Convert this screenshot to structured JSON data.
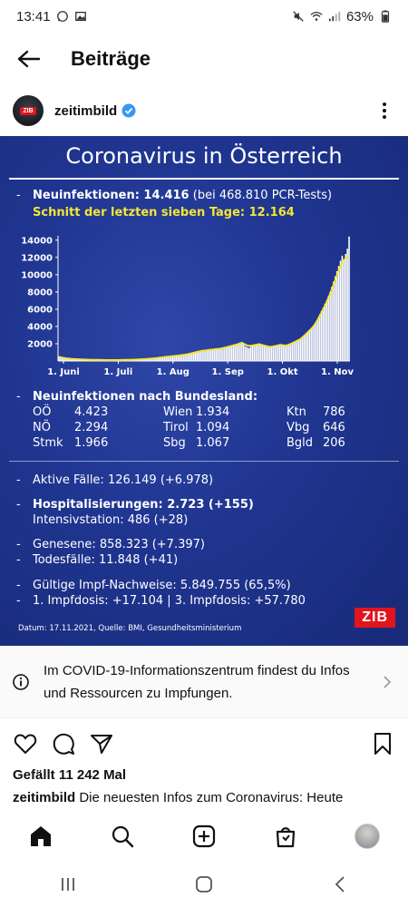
{
  "status_bar": {
    "time": "13:41",
    "battery": "63%"
  },
  "header": {
    "title": "Beiträge"
  },
  "profile": {
    "username": "zeitimbild",
    "avatar_badge": "ZIB"
  },
  "post_image": {
    "title": "Coronavirus in Österreich",
    "neuinfektionen_label": "Neuinfektionen: 14.416",
    "neuinfektionen_detail": "(bei 468.810 PCR-Tests)",
    "schnitt": "Schnitt der letzten sieben Tage: 12.164",
    "bundesland_title": "Neuinfektionen nach Bundesland:",
    "bundeslaender": [
      {
        "name": "OÖ",
        "value": "4.423"
      },
      {
        "name": "NÖ",
        "value": "2.294"
      },
      {
        "name": "Stmk",
        "value": "1.966"
      },
      {
        "name": "Wien",
        "value": "1.934"
      },
      {
        "name": "Tirol",
        "value": "1.094"
      },
      {
        "name": "Sbg",
        "value": "1.067"
      },
      {
        "name": "Ktn",
        "value": "786"
      },
      {
        "name": "Vbg",
        "value": "646"
      },
      {
        "name": "Bgld",
        "value": "206"
      }
    ],
    "aktive_faelle": "Aktive Fälle: 126.149 (+6.978)",
    "hospitalisierungen": "Hospitalisierungen: 2.723 (+155)",
    "intensivstation": "Intensivstation: 486 (+28)",
    "genesene": "Genesene: 858.323 (+7.397)",
    "todesfaelle": "Todesfälle: 11.848 (+41)",
    "impf_nachweise": "Gültige Impf-Nachweise: 5.849.755 (65,5%)",
    "impfdosis": "1. Impfdosis: +17.104 | 3. Impfdosis: +57.780",
    "source": "Datum: 17.11.2021, Quelle: BMI, Gesundheitsministerium",
    "logo": "ZIB",
    "dash": "-"
  },
  "chart_data": {
    "type": "bar",
    "x_tick_labels": [
      "1. Juni",
      "1. Juli",
      "1. Aug",
      "1. Sep",
      "1. Okt",
      "1. Nov"
    ],
    "y_tick_labels": [
      "14000",
      "12000",
      "10000",
      "8000",
      "6000",
      "4000",
      "2000"
    ],
    "ylim": [
      0,
      14500
    ],
    "series": [
      {
        "type": "bar",
        "color": "#ffffff",
        "values": [
          500,
          420,
          380,
          350,
          300,
          280,
          260,
          250,
          240,
          220,
          210,
          200,
          190,
          180,
          175,
          170,
          160,
          150,
          150,
          140,
          140,
          130,
          130,
          125,
          120,
          120,
          115,
          110,
          110,
          105,
          100,
          100,
          100,
          105,
          110,
          110,
          115,
          120,
          125,
          130,
          130,
          135,
          140,
          150,
          160,
          170,
          180,
          190,
          200,
          210,
          220,
          240,
          250,
          270,
          290,
          310,
          330,
          350,
          380,
          400,
          420,
          450,
          470,
          500,
          520,
          540,
          560,
          580,
          600,
          620,
          650,
          680,
          700,
          720,
          760,
          800,
          850,
          900,
          950,
          1000,
          1050,
          1100,
          1150,
          1180,
          1200,
          1220,
          1250,
          1280,
          1300,
          1320,
          1350,
          1380,
          1400,
          1420,
          1450,
          1500,
          1550,
          1600,
          1650,
          1700,
          1750,
          1800,
          1850,
          1900,
          2000,
          2100,
          2200,
          1950,
          1700,
          1600,
          1500,
          1650,
          1800,
          1900,
          1950,
          2000,
          2050,
          1900,
          1800,
          1700,
          1650,
          1600,
          1600,
          1650,
          1700,
          1750,
          1800,
          1850,
          1900,
          1850,
          1800,
          1750,
          1800,
          1900,
          2000,
          2100,
          2200,
          2300,
          2400,
          2500,
          2600,
          2800,
          3000,
          3200,
          3400,
          3600,
          3800,
          4000,
          4300,
          4600,
          5000,
          5400,
          5800,
          6200,
          6600,
          7000,
          7500,
          8000,
          8600,
          9200,
          9800,
          10400,
          11000,
          11600,
          12200,
          11800,
          12400,
          13000,
          14416
        ]
      },
      {
        "type": "line",
        "name": "Schnitt",
        "color": "#f4e633",
        "values": [
          480,
          430,
          390,
          360,
          320,
          290,
          270,
          255,
          240,
          225,
          210,
          200,
          190,
          180,
          172,
          165,
          158,
          150,
          146,
          140,
          136,
          131,
          128,
          124,
          120,
          118,
          114,
          110,
          108,
          105,
          102,
          101,
          102,
          104,
          108,
          110,
          114,
          118,
          124,
          128,
          131,
          136,
          142,
          150,
          158,
          168,
          178,
          188,
          198,
          208,
          222,
          238,
          252,
          270,
          288,
          308,
          328,
          350,
          376,
          398,
          420,
          446,
          470,
          496,
          518,
          540,
          560,
          580,
          600,
          622,
          650,
          676,
          700,
          724,
          760,
          800,
          846,
          896,
          946,
          996,
          1046,
          1094,
          1140,
          1176,
          1200,
          1222,
          1250,
          1278,
          1300,
          1322,
          1350,
          1378,
          1400,
          1422,
          1452,
          1500,
          1548,
          1598,
          1648,
          1698,
          1748,
          1798,
          1850,
          1900,
          1980,
          2050,
          2100,
          2000,
          1900,
          1800,
          1750,
          1760,
          1790,
          1830,
          1870,
          1900,
          1920,
          1880,
          1830,
          1780,
          1720,
          1670,
          1640,
          1650,
          1680,
          1720,
          1770,
          1820,
          1860,
          1850,
          1820,
          1790,
          1810,
          1880,
          1960,
          2050,
          2150,
          2250,
          2350,
          2450,
          2560,
          2740,
          2920,
          3100,
          3300,
          3500,
          3700,
          3920,
          4180,
          4480,
          4840,
          5220,
          5600,
          6000,
          6420,
          6840,
          7300,
          7780,
          8300,
          8850,
          9400,
          9950,
          10500,
          11000,
          11400,
          11650,
          11900,
          12050,
          12164
        ]
      }
    ]
  },
  "info_box": {
    "text": "Im COVID-19-Informationszentrum findest du Infos und Ressourcen zu Impfungen."
  },
  "likes": "Gefällt 11 242 Mal",
  "caption": {
    "username": "zeitimbild",
    "text": "Die neuesten Infos zum Coronavirus: Heute"
  },
  "icons": {
    "back": "back-arrow-icon",
    "verified": "verified-icon",
    "more": "more-icon",
    "like": "heart-icon",
    "comment": "comment-icon",
    "share": "share-icon",
    "save": "bookmark-icon",
    "home": "home-icon",
    "search": "search-icon",
    "create": "create-icon",
    "shop": "shop-icon"
  }
}
